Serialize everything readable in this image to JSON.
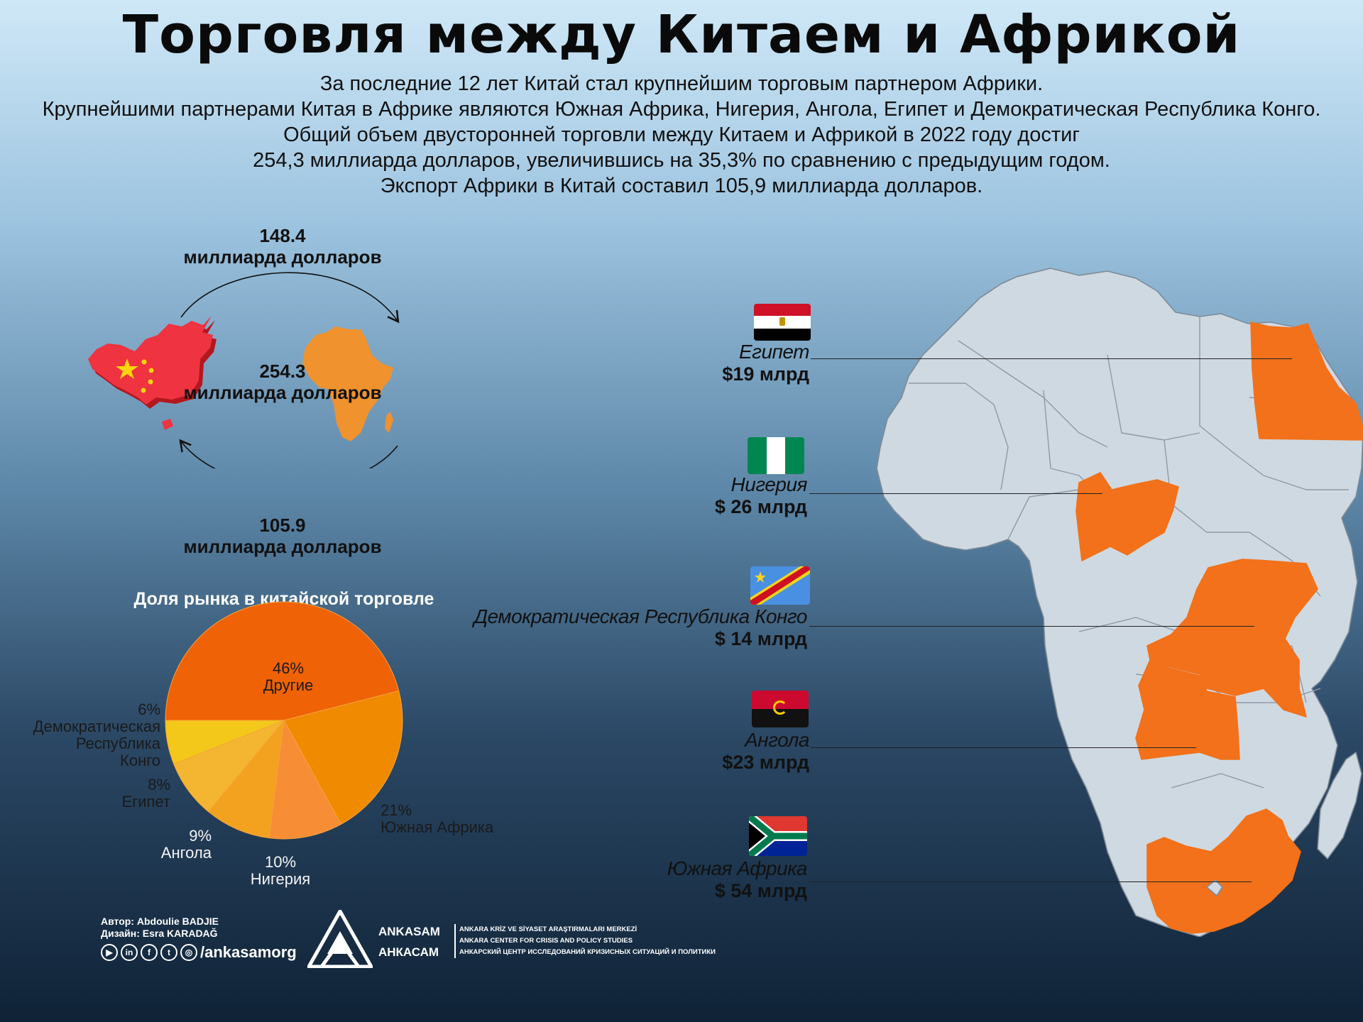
{
  "header": {
    "title": "Торговля между Китаем и Африкой",
    "intro_lines": [
      "За последние 12 лет Китай стал крупнейшим торговым партнером Африки.",
      "Крупнейшими партнерами Китая в Африке являются Южная Африка, Нигерия, Ангола, Египет и Демократическая Республика Конго.",
      "Общий объем двусторонней торговли между Китаем и Африкой в 2022 году достиг",
      "254,3 миллиарда долларов, увеличившись на 35,3% по сравнению с предыдущим годом.",
      "Экспорт Африки в Китай составил 105,9 миллиарда долларов."
    ]
  },
  "trade_flow": {
    "china_to_africa": {
      "value": "148.4",
      "unit": "миллиарда долларов"
    },
    "total": {
      "value": "254.3",
      "unit": "миллиарда долларов"
    },
    "africa_to_china": {
      "value": "105.9",
      "unit": "миллиарда долларов"
    }
  },
  "chart_data": {
    "type": "pie",
    "title": "Доля рынка в китайской торговле",
    "unit": "%",
    "slices": [
      {
        "name": "Другие",
        "value": 46,
        "label": "46%",
        "color": "#f06206"
      },
      {
        "name": "Южная Африка",
        "value": 21,
        "label": "21%",
        "color": "#f08a00"
      },
      {
        "name": "Нигерия",
        "value": 10,
        "label": "10%",
        "color": "#f78d35"
      },
      {
        "name": "Ангола",
        "value": 9,
        "label": "9%",
        "color": "#f2a21e"
      },
      {
        "name": "Египет",
        "value": 8,
        "label": "8%",
        "color": "#f4b630"
      },
      {
        "name": "Демократическая Республика Конго",
        "value": 6,
        "label": "6%",
        "color": "#f3c81a"
      }
    ],
    "label_lines": {
      "others": [
        "46%",
        "Другие"
      ],
      "south_africa": [
        "21%",
        "Южная Африка"
      ],
      "nigeria": [
        "10%",
        "Нигерия"
      ],
      "angola": [
        "9%",
        "Ангола"
      ],
      "egypt": [
        "8%",
        "Египет"
      ],
      "drc": [
        "6%",
        "Демократическая",
        "Республика",
        "Конго"
      ]
    }
  },
  "countries": [
    {
      "id": "egypt",
      "name": "Египет",
      "value": "$19 млрд"
    },
    {
      "id": "nigeria",
      "name": "Нигерия",
      "value": "$ 26 млрд"
    },
    {
      "id": "drc",
      "name": "Демократическая Республика Конго",
      "value": "$ 14 млрд"
    },
    {
      "id": "angola",
      "name": "Ангола",
      "value": "$23 млрд"
    },
    {
      "id": "south_africa",
      "name": "Южная Африка",
      "value": "$ 54 млрд"
    }
  ],
  "colors": {
    "highlight": "#f2711a",
    "map_land": "#cfd9e2",
    "china_red": "#ef3340",
    "china_star": "#fbd50c"
  },
  "footer": {
    "author": "Автор: Abdoulie BADJIE",
    "design": "Дизайн: Esra KARADAĞ",
    "social_handle": "/ankasamorg",
    "social_icons": [
      "youtube-icon",
      "linkedin-icon",
      "facebook-icon",
      "twitter-icon",
      "instagram-icon"
    ],
    "org_name_latin": "ANKASAM",
    "org_name_cyrillic": "АНКАСАМ",
    "org_lines": [
      "ANKARA KRİZ VE SİYASET ARAŞTIRMALARI MERKEZİ",
      "ANKARA CENTER FOR CRISIS AND POLICY STUDIES",
      "АНКАРСКИЙ ЦЕНТР ИССЛЕДОВАНИЙ КРИЗИСНЫХ СИТУАЦИЙ И ПОЛИТИКИ"
    ]
  }
}
